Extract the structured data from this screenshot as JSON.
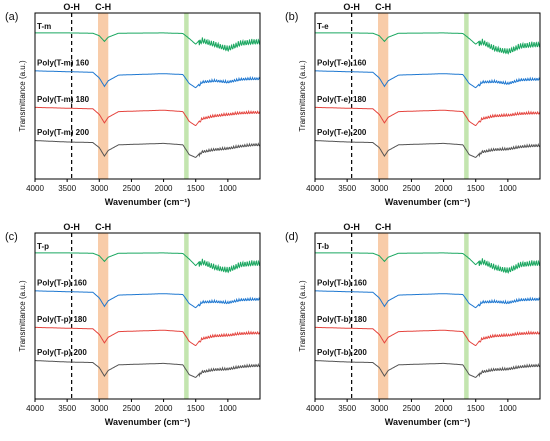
{
  "chart_data": [
    {
      "type": "line",
      "panel_label": "(a)",
      "xlabel": "Wavenumber (cm⁻¹)",
      "ylabel": "Transmittance (a.u.)",
      "xlim": [
        4000,
        500
      ],
      "x_ticks": [
        4000,
        3500,
        3000,
        2500,
        2000,
        1500,
        1000
      ],
      "x_reversed": true,
      "grid": false,
      "annotations": [
        {
          "type": "vline",
          "x": 3430,
          "label": "O-H",
          "style": "dashed"
        },
        {
          "type": "band",
          "x1": 3020,
          "x2": 2860,
          "label": "C-H",
          "color": "#f7c39a"
        },
        {
          "type": "band",
          "x1": 1680,
          "x2": 1610,
          "label": "",
          "color": "#b9e0a1"
        }
      ],
      "series": [
        {
          "name": "T-m",
          "color": "#1aa760",
          "x": [
            4000,
            3500,
            3100,
            3000,
            2920,
            2860,
            2700,
            2000,
            1700,
            1600,
            1500,
            1400,
            1200,
            1000,
            800,
            600
          ],
          "y": [
            1.0,
            1.0,
            0.99,
            0.9,
            0.7,
            0.85,
            0.99,
            1.0,
            0.98,
            0.8,
            0.6,
            0.85,
            0.7,
            0.55,
            0.75,
            0.8
          ]
        },
        {
          "name": "Poly(T-m) 160",
          "color": "#1f78d1",
          "x": [
            4000,
            3500,
            3100,
            3000,
            2920,
            2860,
            2700,
            2000,
            1700,
            1600,
            1500,
            1400,
            1200,
            1000,
            800,
            600
          ],
          "y": [
            0.95,
            0.92,
            0.9,
            0.7,
            0.4,
            0.6,
            0.8,
            0.85,
            0.82,
            0.5,
            0.35,
            0.6,
            0.65,
            0.6,
            0.7,
            0.72
          ]
        },
        {
          "name": "Poly(T-m) 180",
          "color": "#e5453f",
          "x": [
            4000,
            3500,
            3100,
            3000,
            2920,
            2860,
            2700,
            2000,
            1700,
            1600,
            1500,
            1400,
            1200,
            1000,
            800,
            600
          ],
          "y": [
            0.95,
            0.92,
            0.9,
            0.7,
            0.4,
            0.6,
            0.8,
            0.85,
            0.8,
            0.45,
            0.3,
            0.6,
            0.7,
            0.75,
            0.8,
            0.82
          ]
        },
        {
          "name": "Poly(T-m) 200",
          "color": "#555555",
          "x": [
            4000,
            3500,
            3100,
            3000,
            2920,
            2860,
            2700,
            2000,
            1700,
            1600,
            1500,
            1400,
            1200,
            1000,
            800,
            600
          ],
          "y": [
            0.95,
            0.9,
            0.88,
            0.7,
            0.4,
            0.6,
            0.8,
            0.85,
            0.8,
            0.45,
            0.35,
            0.6,
            0.68,
            0.72,
            0.8,
            0.85
          ]
        }
      ]
    },
    {
      "type": "line",
      "panel_label": "(b)",
      "xlabel": "Wavenumber (cm⁻¹)",
      "ylabel": "Transmittance (a.u.)",
      "xlim": [
        4000,
        500
      ],
      "x_ticks": [
        4000,
        3500,
        3000,
        2500,
        2000,
        1500,
        1000
      ],
      "x_reversed": true,
      "grid": false,
      "annotations": [
        {
          "type": "vline",
          "x": 3430,
          "label": "O-H",
          "style": "dashed"
        },
        {
          "type": "band",
          "x1": 3020,
          "x2": 2860,
          "label": "C-H",
          "color": "#f7c39a"
        },
        {
          "type": "band",
          "x1": 1680,
          "x2": 1610,
          "label": "",
          "color": "#b9e0a1"
        }
      ],
      "series": [
        {
          "name": "T-e",
          "color": "#1aa760",
          "x": [
            4000,
            3500,
            3100,
            3000,
            2920,
            2860,
            2700,
            2000,
            1700,
            1600,
            1500,
            1400,
            1200,
            1000,
            800,
            600
          ],
          "y": [
            1.0,
            1.0,
            0.99,
            0.9,
            0.7,
            0.85,
            0.99,
            1.0,
            0.98,
            0.8,
            0.6,
            0.8,
            0.55,
            0.45,
            0.65,
            0.7
          ]
        },
        {
          "name": "Poly(T-e) 160",
          "color": "#1f78d1",
          "x": [
            4000,
            3500,
            3100,
            3000,
            2920,
            2860,
            2700,
            2000,
            1700,
            1600,
            1500,
            1400,
            1200,
            1000,
            800,
            600
          ],
          "y": [
            0.95,
            0.92,
            0.9,
            0.7,
            0.4,
            0.6,
            0.8,
            0.85,
            0.82,
            0.5,
            0.35,
            0.6,
            0.62,
            0.55,
            0.68,
            0.7
          ]
        },
        {
          "name": "Poly(T-e) 180",
          "color": "#e5453f",
          "x": [
            4000,
            3500,
            3100,
            3000,
            2920,
            2860,
            2700,
            2000,
            1700,
            1600,
            1500,
            1400,
            1200,
            1000,
            800,
            600
          ],
          "y": [
            0.95,
            0.92,
            0.9,
            0.7,
            0.4,
            0.6,
            0.8,
            0.85,
            0.8,
            0.45,
            0.3,
            0.6,
            0.7,
            0.72,
            0.78,
            0.8
          ]
        },
        {
          "name": "Poly(T-e) 200",
          "color": "#555555",
          "x": [
            4000,
            3500,
            3100,
            3000,
            2920,
            2860,
            2700,
            2000,
            1700,
            1600,
            1500,
            1400,
            1200,
            1000,
            800,
            600
          ],
          "y": [
            0.95,
            0.9,
            0.88,
            0.7,
            0.4,
            0.6,
            0.8,
            0.85,
            0.8,
            0.45,
            0.35,
            0.6,
            0.68,
            0.7,
            0.78,
            0.82
          ]
        }
      ]
    },
    {
      "type": "line",
      "panel_label": "(c)",
      "xlabel": "Wavenumber (cm⁻¹)",
      "ylabel": "Transmittance (a.u.)",
      "xlim": [
        4000,
        500
      ],
      "x_ticks": [
        4000,
        3500,
        3000,
        2500,
        2000,
        1500,
        1000
      ],
      "x_reversed": true,
      "grid": false,
      "annotations": [
        {
          "type": "vline",
          "x": 3430,
          "label": "O-H",
          "style": "dashed"
        },
        {
          "type": "band",
          "x1": 3020,
          "x2": 2860,
          "label": "C-H",
          "color": "#f7c39a"
        },
        {
          "type": "band",
          "x1": 1680,
          "x2": 1610,
          "label": "",
          "color": "#b9e0a1"
        }
      ],
      "series": [
        {
          "name": "T-p",
          "color": "#1aa760",
          "x": [
            4000,
            3500,
            3100,
            3000,
            2920,
            2860,
            2700,
            2000,
            1700,
            1600,
            1500,
            1400,
            1200,
            1000,
            800,
            600
          ],
          "y": [
            1.0,
            1.0,
            0.99,
            0.9,
            0.7,
            0.85,
            0.99,
            1.0,
            0.98,
            0.78,
            0.55,
            0.8,
            0.6,
            0.5,
            0.7,
            0.75
          ]
        },
        {
          "name": "Poly(T-p) 160",
          "color": "#1f78d1",
          "x": [
            4000,
            3500,
            3100,
            3000,
            2920,
            2860,
            2700,
            2000,
            1700,
            1600,
            1500,
            1400,
            1200,
            1000,
            800,
            600
          ],
          "y": [
            0.95,
            0.92,
            0.9,
            0.7,
            0.4,
            0.6,
            0.8,
            0.85,
            0.82,
            0.5,
            0.35,
            0.6,
            0.62,
            0.58,
            0.68,
            0.7
          ]
        },
        {
          "name": "Poly(T-p) 180",
          "color": "#e5453f",
          "x": [
            4000,
            3500,
            3100,
            3000,
            2920,
            2860,
            2700,
            2000,
            1700,
            1600,
            1500,
            1400,
            1200,
            1000,
            800,
            600
          ],
          "y": [
            0.95,
            0.92,
            0.9,
            0.7,
            0.4,
            0.6,
            0.8,
            0.85,
            0.8,
            0.45,
            0.3,
            0.6,
            0.7,
            0.72,
            0.78,
            0.8
          ]
        },
        {
          "name": "Poly(T-p) 200",
          "color": "#555555",
          "x": [
            4000,
            3500,
            3100,
            3000,
            2920,
            2860,
            2700,
            2000,
            1700,
            1600,
            1500,
            1400,
            1200,
            1000,
            800,
            600
          ],
          "y": [
            0.95,
            0.9,
            0.88,
            0.7,
            0.4,
            0.6,
            0.8,
            0.85,
            0.8,
            0.45,
            0.35,
            0.6,
            0.68,
            0.7,
            0.78,
            0.82
          ]
        }
      ]
    },
    {
      "type": "line",
      "panel_label": "(d)",
      "xlabel": "Wavenumber (cm⁻¹)",
      "ylabel": "Transmittance (a.u.)",
      "xlim": [
        4000,
        500
      ],
      "x_ticks": [
        4000,
        3500,
        3000,
        2500,
        2000,
        1500,
        1000
      ],
      "x_reversed": true,
      "grid": false,
      "annotations": [
        {
          "type": "vline",
          "x": 3430,
          "label": "O-H",
          "style": "dashed"
        },
        {
          "type": "band",
          "x1": 3020,
          "x2": 2860,
          "label": "C-H",
          "color": "#f7c39a"
        },
        {
          "type": "band",
          "x1": 1680,
          "x2": 1610,
          "label": "",
          "color": "#b9e0a1"
        }
      ],
      "series": [
        {
          "name": "T-b",
          "color": "#1aa760",
          "x": [
            4000,
            3500,
            3100,
            3000,
            2920,
            2860,
            2700,
            2000,
            1700,
            1600,
            1500,
            1400,
            1200,
            1000,
            800,
            600
          ],
          "y": [
            1.0,
            1.0,
            0.99,
            0.9,
            0.7,
            0.85,
            0.99,
            1.0,
            0.98,
            0.8,
            0.58,
            0.82,
            0.6,
            0.48,
            0.7,
            0.75
          ]
        },
        {
          "name": "Poly(T-b) 160",
          "color": "#1f78d1",
          "x": [
            4000,
            3500,
            3100,
            3000,
            2920,
            2860,
            2700,
            2000,
            1700,
            1600,
            1500,
            1400,
            1200,
            1000,
            800,
            600
          ],
          "y": [
            0.95,
            0.92,
            0.9,
            0.7,
            0.4,
            0.6,
            0.8,
            0.85,
            0.82,
            0.5,
            0.35,
            0.6,
            0.62,
            0.58,
            0.68,
            0.7
          ]
        },
        {
          "name": "Poly(T-b) 180",
          "color": "#e5453f",
          "x": [
            4000,
            3500,
            3100,
            3000,
            2920,
            2860,
            2700,
            2000,
            1700,
            1600,
            1500,
            1400,
            1200,
            1000,
            800,
            600
          ],
          "y": [
            0.95,
            0.92,
            0.9,
            0.7,
            0.4,
            0.6,
            0.8,
            0.85,
            0.8,
            0.45,
            0.3,
            0.6,
            0.7,
            0.72,
            0.78,
            0.8
          ]
        },
        {
          "name": "Poly(T-b) 200",
          "color": "#555555",
          "x": [
            4000,
            3500,
            3100,
            3000,
            2920,
            2860,
            2700,
            2000,
            1700,
            1600,
            1500,
            1400,
            1200,
            1000,
            800,
            600
          ],
          "y": [
            0.95,
            0.9,
            0.88,
            0.7,
            0.4,
            0.6,
            0.8,
            0.85,
            0.8,
            0.45,
            0.35,
            0.6,
            0.68,
            0.7,
            0.78,
            0.82
          ]
        }
      ]
    }
  ]
}
